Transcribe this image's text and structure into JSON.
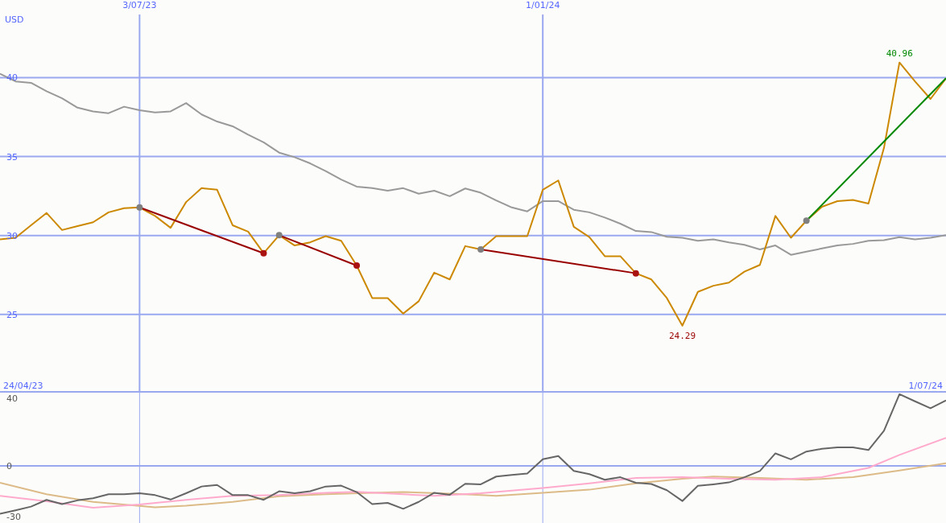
{
  "chart_data": [
    {
      "type": "line",
      "ylabel": "USD",
      "x": [
        "2023-05-01",
        "2023-05-08",
        "2023-05-15",
        "2023-05-22",
        "2023-05-29",
        "2023-06-05",
        "2023-06-12",
        "2023-06-19",
        "2023-06-26",
        "2023-07-03",
        "2023-07-10",
        "2023-07-17",
        "2023-07-24",
        "2023-07-31",
        "2023-08-07",
        "2023-08-14",
        "2023-08-21",
        "2023-08-28",
        "2023-09-04",
        "2023-09-11",
        "2023-09-18",
        "2023-09-25",
        "2023-10-02",
        "2023-10-09",
        "2023-10-16",
        "2023-10-23",
        "2023-10-30",
        "2023-11-06",
        "2023-11-13",
        "2023-11-20",
        "2023-11-27",
        "2023-12-04",
        "2023-12-11",
        "2023-12-18",
        "2023-12-25",
        "2024-01-01",
        "2024-01-08",
        "2024-01-15",
        "2024-01-22",
        "2024-01-29",
        "2024-02-05",
        "2024-02-12",
        "2024-02-19",
        "2024-02-26",
        "2024-03-04",
        "2024-03-11",
        "2024-03-18",
        "2024-03-25",
        "2024-04-01",
        "2024-04-08",
        "2024-04-15",
        "2024-04-22",
        "2024-04-29",
        "2024-05-06",
        "2024-05-13",
        "2024-05-20",
        "2024-05-27",
        "2024-06-03",
        "2024-06-10",
        "2024-06-17",
        "2024-06-24",
        "2024-07-01"
      ],
      "xlim": [
        "2023-05-01",
        "2024-07-01"
      ],
      "xticks": [
        {
          "value": "2023-07-03",
          "label": "3/07/23"
        },
        {
          "value": "2024-01-01",
          "label": "1/01/24"
        }
      ],
      "ylim": [
        20.1,
        44
      ],
      "yticks": [
        25,
        30,
        35,
        40
      ],
      "grid": true,
      "marker": "none",
      "annotations": [
        {
          "text": "40.96",
          "x": "2024-06-10",
          "y": 40.96
        },
        {
          "text": "24.29",
          "x": "2024-03-04",
          "y": 24.29
        }
      ],
      "series": [
        {
          "color": "#999999",
          "values": [
            40.25,
            39.76,
            39.67,
            39.14,
            38.69,
            38.1,
            37.86,
            37.75,
            38.16,
            37.94,
            37.8,
            37.86,
            38.39,
            37.67,
            37.22,
            36.92,
            36.39,
            35.9,
            35.25,
            34.96,
            34.57,
            34.08,
            33.55,
            33.1,
            33.0,
            32.84,
            33.0,
            32.65,
            32.84,
            32.49,
            32.98,
            32.71,
            32.22,
            31.78,
            31.53,
            32.18,
            32.18,
            31.63,
            31.47,
            31.14,
            30.75,
            30.29,
            30.22,
            29.92,
            29.86,
            29.67,
            29.76,
            29.57,
            29.41,
            29.12,
            29.37,
            28.78,
            28.98,
            29.18,
            29.37,
            29.47,
            29.67,
            29.71,
            29.9,
            29.76,
            29.86,
            30.02
          ]
        },
        {
          "color": "#cc8800",
          "values": [
            29.76,
            29.86,
            30.65,
            31.43,
            30.35,
            30.6,
            30.84,
            31.47,
            31.73,
            31.78,
            31.24,
            30.49,
            32.12,
            33.0,
            32.9,
            30.65,
            30.25,
            28.88,
            30.02,
            29.37,
            29.57,
            29.96,
            29.67,
            28.1,
            26.04,
            26.04,
            25.06,
            25.84,
            27.65,
            27.22,
            29.33,
            29.12,
            29.96,
            29.96,
            29.96,
            32.9,
            33.49,
            30.55,
            29.9,
            28.69,
            28.69,
            27.61,
            27.22,
            26.04,
            24.29,
            26.43,
            26.82,
            27.02,
            27.71,
            28.14,
            31.24,
            29.86,
            30.94,
            31.82,
            32.18,
            32.25,
            32.02,
            35.55,
            40.96,
            39.76,
            38.65,
            39.96
          ]
        },
        {
          "type": "line",
          "color": "#990000",
          "marker": "circle",
          "x": [
            "2023-07-03",
            "2023-08-28"
          ],
          "values": [
            31.78,
            28.88
          ],
          "colors": [
            "#808080",
            "#aa1111"
          ]
        },
        {
          "type": "line",
          "color": "#990000",
          "marker": "circle",
          "x": [
            "2023-09-04",
            "2023-10-09"
          ],
          "values": [
            30.02,
            28.1
          ],
          "colors": [
            "#808080",
            "#aa1111"
          ]
        },
        {
          "type": "line",
          "color": "#990000",
          "marker": "circle",
          "x": [
            "2023-12-04",
            "2024-02-12"
          ],
          "values": [
            29.12,
            27.61
          ],
          "colors": [
            "#808080",
            "#aa1111"
          ]
        },
        {
          "type": "line",
          "color": "#008800",
          "marker": "circle",
          "x": [
            "2024-04-29",
            "2024-07-01"
          ],
          "values": [
            30.94,
            39.96
          ],
          "colors": [
            "#808080",
            null
          ]
        }
      ]
    },
    {
      "type": "line",
      "x": [
        "2023-05-01",
        "2023-05-08",
        "2023-05-15",
        "2023-05-22",
        "2023-05-29",
        "2023-06-05",
        "2023-06-12",
        "2023-06-19",
        "2023-06-26",
        "2023-07-03",
        "2023-07-10",
        "2023-07-17",
        "2023-07-24",
        "2023-07-31",
        "2023-08-07",
        "2023-08-14",
        "2023-08-21",
        "2023-08-28",
        "2023-09-04",
        "2023-09-11",
        "2023-09-18",
        "2023-09-25",
        "2023-10-02",
        "2023-10-09",
        "2023-10-16",
        "2023-10-23",
        "2023-10-30",
        "2023-11-06",
        "2023-11-13",
        "2023-11-20",
        "2023-11-27",
        "2023-12-04",
        "2023-12-11",
        "2023-12-18",
        "2023-12-25",
        "2024-01-01",
        "2024-01-08",
        "2024-01-15",
        "2024-01-22",
        "2024-01-29",
        "2024-02-05",
        "2024-02-12",
        "2024-02-19",
        "2024-02-26",
        "2024-03-04",
        "2024-03-11",
        "2024-03-18",
        "2024-03-25",
        "2024-04-01",
        "2024-04-08",
        "2024-04-15",
        "2024-04-22",
        "2024-04-29",
        "2024-05-06",
        "2024-05-13",
        "2024-05-20",
        "2024-05-27",
        "2024-06-03",
        "2024-06-10",
        "2024-06-17",
        "2024-06-24",
        "2024-07-01"
      ],
      "xlim": [
        "2023-05-01",
        "2024-07-01"
      ],
      "xticks": [
        "2023-07-03",
        "2024-01-01"
      ],
      "ylim": [
        -33.8,
        43.8
      ],
      "yticks": [
        -30,
        0,
        40
      ],
      "grid": "x",
      "tick_labels": "y",
      "ref_lines": [
        {
          "axis": "y",
          "value": 0
        }
      ],
      "annotations": [
        "24/04/23",
        "1/07/24"
      ],
      "series": [
        {
          "color": "#ddbb88",
          "x": [
            "2023-05-01",
            "2023-05-22",
            "2023-06-12",
            "2023-07-03",
            "2023-07-10",
            "2023-07-24",
            "2023-08-14",
            "2023-09-04",
            "2023-09-25",
            "2023-10-16",
            "2023-10-30",
            "2023-11-20",
            "2023-12-04",
            "2023-12-11",
            "2024-01-01",
            "2024-01-22",
            "2024-02-12",
            "2024-03-04",
            "2024-03-18",
            "2024-04-08",
            "2024-04-29",
            "2024-05-20",
            "2024-06-10",
            "2024-07-01"
          ],
          "values": [
            -10.0,
            -16.8,
            -21.3,
            -23.7,
            -24.5,
            -23.6,
            -21.3,
            -18.0,
            -16.8,
            -15.9,
            -15.5,
            -16.4,
            -17.3,
            -17.7,
            -15.9,
            -14.1,
            -10.4,
            -7.6,
            -6.3,
            -7.1,
            -8.2,
            -6.7,
            -2.7,
            1.5
          ]
        },
        {
          "color": "#ffaacc",
          "x": [
            "2023-05-01",
            "2023-05-22",
            "2023-06-12",
            "2023-07-03",
            "2023-07-24",
            "2023-08-14",
            "2023-09-04",
            "2023-09-25",
            "2023-10-09",
            "2023-10-30",
            "2023-11-13",
            "2023-12-04",
            "2024-01-01",
            "2024-01-22",
            "2024-02-12",
            "2024-03-04",
            "2024-03-25",
            "2024-04-15",
            "2024-05-06",
            "2024-05-27",
            "2024-06-10",
            "2024-07-01"
          ],
          "values": [
            -17.7,
            -21.0,
            -24.7,
            -22.8,
            -20.1,
            -17.7,
            -17.3,
            -15.9,
            -15.3,
            -16.8,
            -17.7,
            -16.2,
            -13.1,
            -10.4,
            -7.1,
            -6.7,
            -7.6,
            -8.2,
            -6.7,
            -1.2,
            6.5,
            16.6
          ]
        },
        {
          "color": "#666666",
          "values": [
            -28.3,
            -26.3,
            -24.1,
            -20.1,
            -22.6,
            -20.4,
            -19.2,
            -16.8,
            -16.8,
            -16.2,
            -17.3,
            -19.9,
            -16.2,
            -12.2,
            -11.3,
            -17.3,
            -17.3,
            -20.1,
            -15.0,
            -16.2,
            -15.0,
            -12.2,
            -11.7,
            -15.5,
            -22.6,
            -21.9,
            -25.4,
            -21.3,
            -15.9,
            -17.1,
            -10.6,
            -10.9,
            -6.3,
            -5.4,
            -4.5,
            3.9,
            5.8,
            -3.0,
            -4.9,
            -8.2,
            -6.7,
            -10.0,
            -10.7,
            -14.4,
            -20.8,
            -11.8,
            -10.9,
            -9.8,
            -6.7,
            -3.0,
            7.4,
            3.9,
            8.5,
            10.1,
            11.0,
            11.0,
            9.4,
            20.8,
            42.4,
            38.2,
            34.1,
            38.7
          ]
        }
      ]
    }
  ]
}
